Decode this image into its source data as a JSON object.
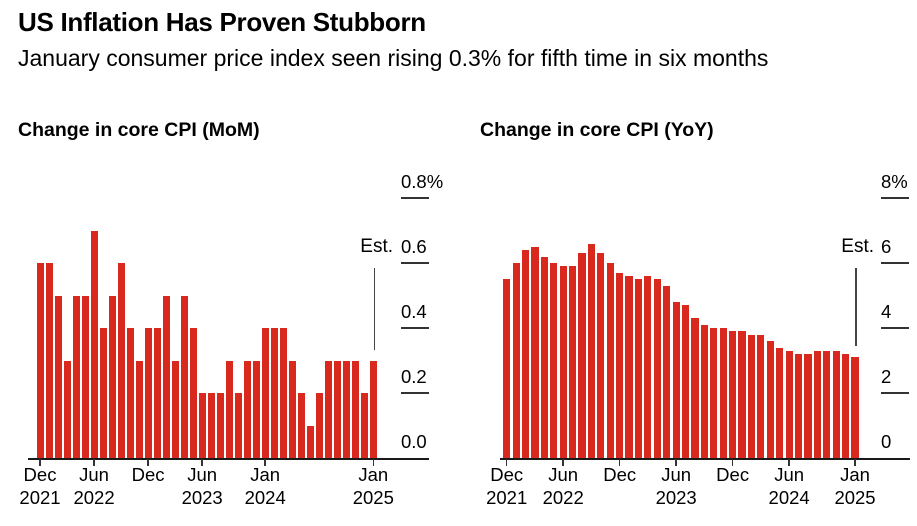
{
  "header": {
    "title": "US Inflation Has Proven Stubborn",
    "subtitle": "January consumer price index seen rising 0.3% for fifth time in six months"
  },
  "accent_color": "#d9281e",
  "chart_data": [
    {
      "type": "bar",
      "title": "Change in core CPI (MoM)",
      "bar_color": "#d9281e",
      "grid": false,
      "ylim": [
        0,
        0.8
      ],
      "x": [
        "Dec 2021",
        "Jan 2022",
        "Feb 2022",
        "Mar 2022",
        "Apr 2022",
        "May 2022",
        "Jun 2022",
        "Jul 2022",
        "Aug 2022",
        "Sep 2022",
        "Oct 2022",
        "Nov 2022",
        "Dec 2022",
        "Jan 2023",
        "Feb 2023",
        "Mar 2023",
        "Apr 2023",
        "May 2023",
        "Jun 2023",
        "Jul 2023",
        "Aug 2023",
        "Sep 2023",
        "Oct 2023",
        "Nov 2023",
        "Dec 2023",
        "Jan 2024",
        "Feb 2024",
        "Mar 2024",
        "Apr 2024",
        "May 2024",
        "Jun 2024",
        "Jul 2024",
        "Aug 2024",
        "Sep 2024",
        "Oct 2024",
        "Nov 2024",
        "Dec 2024",
        "Jan 2025"
      ],
      "values": [
        0.6,
        0.6,
        0.5,
        0.3,
        0.5,
        0.5,
        0.7,
        0.4,
        0.5,
        0.6,
        0.4,
        0.3,
        0.4,
        0.4,
        0.5,
        0.3,
        0.5,
        0.4,
        0.2,
        0.2,
        0.2,
        0.3,
        0.2,
        0.3,
        0.3,
        0.4,
        0.4,
        0.4,
        0.3,
        0.2,
        0.1,
        0.2,
        0.3,
        0.3,
        0.3,
        0.3,
        0.2,
        0.3
      ],
      "yticks": [
        {
          "value": 0.8,
          "label": "0.8%"
        },
        {
          "value": 0.6,
          "label": "0.6"
        },
        {
          "value": 0.4,
          "label": "0.4"
        },
        {
          "value": 0.2,
          "label": "0.2"
        },
        {
          "value": 0.0,
          "label": "0.0"
        }
      ],
      "xticks": [
        {
          "index": 0,
          "lines": [
            "Dec",
            "2021"
          ]
        },
        {
          "index": 6,
          "lines": [
            "Jun",
            "2022"
          ]
        },
        {
          "index": 12,
          "lines": [
            "Dec"
          ]
        },
        {
          "index": 18,
          "lines": [
            "Jun",
            "2023"
          ]
        },
        {
          "index": 25,
          "lines": [
            "Jan",
            "2024"
          ]
        },
        {
          "index": 37,
          "lines": [
            "Jan",
            "2025"
          ]
        }
      ],
      "estimate": {
        "label": "Est.",
        "index": 37,
        "value": 0.3
      }
    },
    {
      "type": "bar",
      "title": "Change in core CPI (YoY)",
      "bar_color": "#d9281e",
      "grid": false,
      "ylim": [
        0,
        8
      ],
      "x": [
        "Dec 2021",
        "Jan 2022",
        "Feb 2022",
        "Mar 2022",
        "Apr 2022",
        "May 2022",
        "Jun 2022",
        "Jul 2022",
        "Aug 2022",
        "Sep 2022",
        "Oct 2022",
        "Nov 2022",
        "Dec 2022",
        "Jan 2023",
        "Feb 2023",
        "Mar 2023",
        "Apr 2023",
        "May 2023",
        "Jun 2023",
        "Jul 2023",
        "Aug 2023",
        "Sep 2023",
        "Oct 2023",
        "Nov 2023",
        "Dec 2023",
        "Jan 2024",
        "Feb 2024",
        "Mar 2024",
        "Apr 2024",
        "May 2024",
        "Jun 2024",
        "Jul 2024",
        "Aug 2024",
        "Sep 2024",
        "Oct 2024",
        "Nov 2024",
        "Dec 2024",
        "Jan 2025"
      ],
      "values": [
        5.5,
        6.0,
        6.4,
        6.5,
        6.2,
        6.0,
        5.9,
        5.9,
        6.3,
        6.6,
        6.3,
        6.0,
        5.7,
        5.6,
        5.5,
        5.6,
        5.5,
        5.3,
        4.8,
        4.7,
        4.3,
        4.1,
        4.0,
        4.0,
        3.9,
        3.9,
        3.8,
        3.8,
        3.6,
        3.4,
        3.3,
        3.2,
        3.2,
        3.3,
        3.3,
        3.3,
        3.2,
        3.1
      ],
      "yticks": [
        {
          "value": 8,
          "label": "8%"
        },
        {
          "value": 6,
          "label": "6"
        },
        {
          "value": 4,
          "label": "4"
        },
        {
          "value": 2,
          "label": "2"
        },
        {
          "value": 0,
          "label": "0"
        }
      ],
      "xticks": [
        {
          "index": 0,
          "lines": [
            "Dec",
            "2021"
          ]
        },
        {
          "index": 6,
          "lines": [
            "Jun",
            "2022"
          ]
        },
        {
          "index": 12,
          "lines": [
            "Dec"
          ]
        },
        {
          "index": 18,
          "lines": [
            "Jun",
            "2023"
          ]
        },
        {
          "index": 24,
          "lines": [
            "Dec"
          ]
        },
        {
          "index": 30,
          "lines": [
            "Jun",
            "2024"
          ]
        },
        {
          "index": 37,
          "lines": [
            "Jan",
            "2025"
          ]
        }
      ],
      "estimate": {
        "label": "Est.",
        "index": 37,
        "value": 3.1
      }
    }
  ]
}
